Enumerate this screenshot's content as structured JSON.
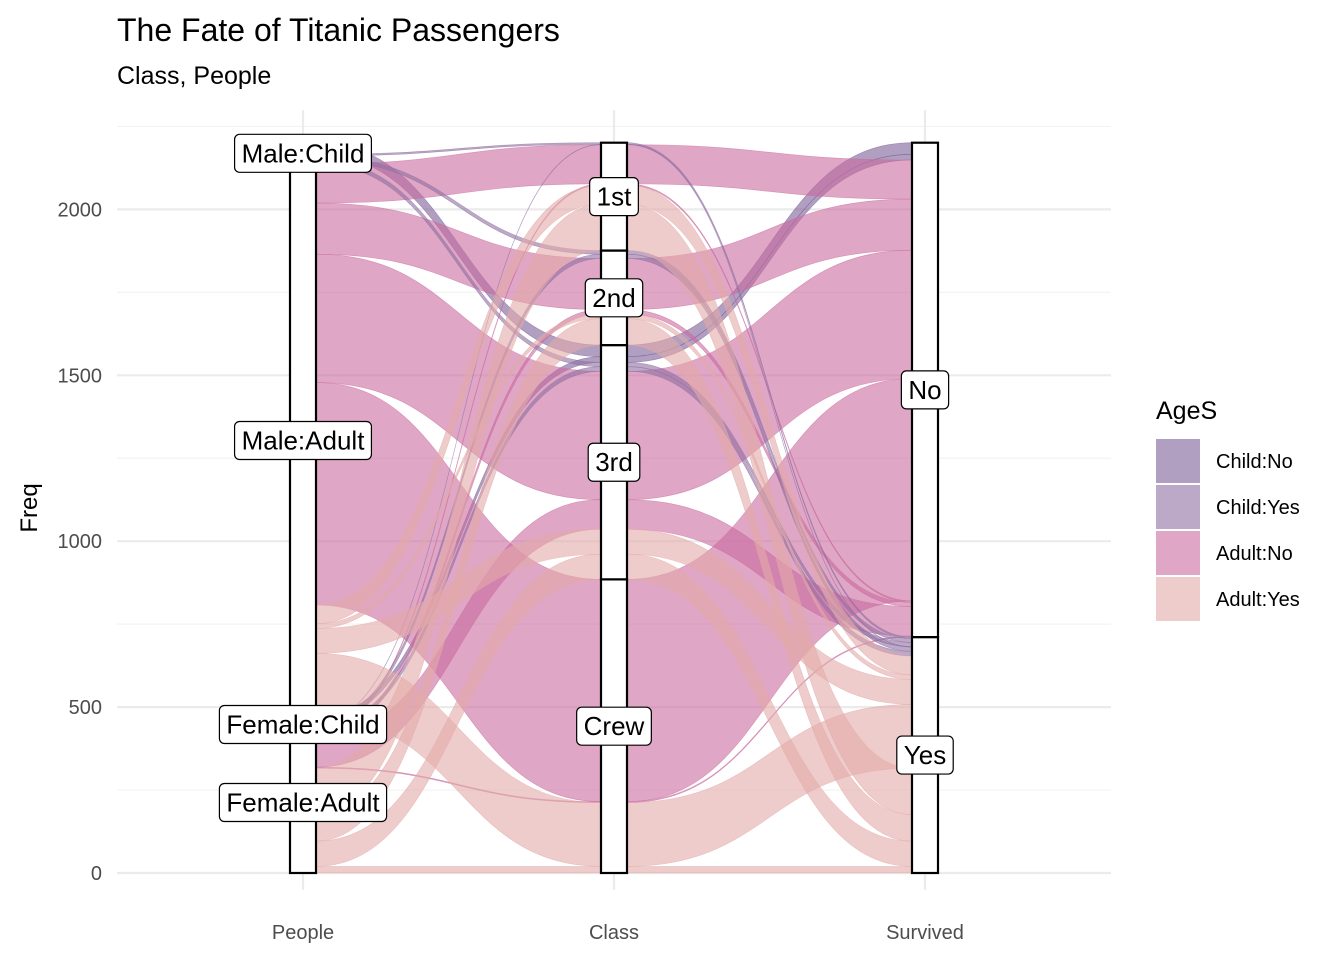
{
  "chart_data": {
    "type": "alluvial",
    "title": "The Fate of Titanic Passengers",
    "subtitle": "Class, People",
    "ylabel": "Freq",
    "ylim": [
      0,
      2201
    ],
    "yticks": [
      0,
      500,
      1000,
      1500,
      2000
    ],
    "axes": [
      "People",
      "Class",
      "Survived"
    ],
    "legend": {
      "title": "AgeS",
      "position": "right",
      "items": [
        {
          "label": "Child:No",
          "color": "#7b5f98"
        },
        {
          "label": "Child:Yes",
          "color": "#8f6fa2"
        },
        {
          "label": "Adult:No",
          "color": "#c96b9e"
        },
        {
          "label": "Adult:Yes",
          "color": "#e3aaa8"
        }
      ]
    },
    "strata": {
      "People": [
        "Female:Adult",
        "Female:Child",
        "Male:Adult",
        "Male:Child"
      ],
      "Class": [
        "Crew",
        "3rd",
        "2nd",
        "1st"
      ],
      "Survived": [
        "Yes",
        "No"
      ]
    },
    "flows": [
      {
        "sex": "Male",
        "age": "Child",
        "class": "1st",
        "survived": "No",
        "fill": "Child:No",
        "freq": 0
      },
      {
        "sex": "Male",
        "age": "Child",
        "class": "2nd",
        "survived": "No",
        "fill": "Child:No",
        "freq": 0
      },
      {
        "sex": "Male",
        "age": "Child",
        "class": "3rd",
        "survived": "No",
        "fill": "Child:No",
        "freq": 35
      },
      {
        "sex": "Male",
        "age": "Child",
        "class": "Crew",
        "survived": "No",
        "fill": "Child:No",
        "freq": 0
      },
      {
        "sex": "Female",
        "age": "Child",
        "class": "1st",
        "survived": "No",
        "fill": "Child:No",
        "freq": 0
      },
      {
        "sex": "Female",
        "age": "Child",
        "class": "2nd",
        "survived": "No",
        "fill": "Child:No",
        "freq": 0
      },
      {
        "sex": "Female",
        "age": "Child",
        "class": "3rd",
        "survived": "No",
        "fill": "Child:No",
        "freq": 17
      },
      {
        "sex": "Female",
        "age": "Child",
        "class": "Crew",
        "survived": "No",
        "fill": "Child:No",
        "freq": 0
      },
      {
        "sex": "Male",
        "age": "Adult",
        "class": "1st",
        "survived": "No",
        "fill": "Adult:No",
        "freq": 118
      },
      {
        "sex": "Male",
        "age": "Adult",
        "class": "2nd",
        "survived": "No",
        "fill": "Adult:No",
        "freq": 154
      },
      {
        "sex": "Male",
        "age": "Adult",
        "class": "3rd",
        "survived": "No",
        "fill": "Adult:No",
        "freq": 387
      },
      {
        "sex": "Male",
        "age": "Adult",
        "class": "Crew",
        "survived": "No",
        "fill": "Adult:No",
        "freq": 670
      },
      {
        "sex": "Female",
        "age": "Adult",
        "class": "1st",
        "survived": "No",
        "fill": "Adult:No",
        "freq": 4
      },
      {
        "sex": "Female",
        "age": "Adult",
        "class": "2nd",
        "survived": "No",
        "fill": "Adult:No",
        "freq": 13
      },
      {
        "sex": "Female",
        "age": "Adult",
        "class": "3rd",
        "survived": "No",
        "fill": "Adult:No",
        "freq": 89
      },
      {
        "sex": "Female",
        "age": "Adult",
        "class": "Crew",
        "survived": "No",
        "fill": "Adult:No",
        "freq": 3
      },
      {
        "sex": "Male",
        "age": "Child",
        "class": "1st",
        "survived": "Yes",
        "fill": "Child:Yes",
        "freq": 5
      },
      {
        "sex": "Male",
        "age": "Child",
        "class": "2nd",
        "survived": "Yes",
        "fill": "Child:Yes",
        "freq": 11
      },
      {
        "sex": "Male",
        "age": "Child",
        "class": "3rd",
        "survived": "Yes",
        "fill": "Child:Yes",
        "freq": 13
      },
      {
        "sex": "Male",
        "age": "Child",
        "class": "Crew",
        "survived": "Yes",
        "fill": "Child:Yes",
        "freq": 0
      },
      {
        "sex": "Female",
        "age": "Child",
        "class": "1st",
        "survived": "Yes",
        "fill": "Child:Yes",
        "freq": 1
      },
      {
        "sex": "Female",
        "age": "Child",
        "class": "2nd",
        "survived": "Yes",
        "fill": "Child:Yes",
        "freq": 13
      },
      {
        "sex": "Female",
        "age": "Child",
        "class": "3rd",
        "survived": "Yes",
        "fill": "Child:Yes",
        "freq": 14
      },
      {
        "sex": "Female",
        "age": "Child",
        "class": "Crew",
        "survived": "Yes",
        "fill": "Child:Yes",
        "freq": 0
      },
      {
        "sex": "Male",
        "age": "Adult",
        "class": "1st",
        "survived": "Yes",
        "fill": "Adult:Yes",
        "freq": 57
      },
      {
        "sex": "Male",
        "age": "Adult",
        "class": "2nd",
        "survived": "Yes",
        "fill": "Adult:Yes",
        "freq": 14
      },
      {
        "sex": "Male",
        "age": "Adult",
        "class": "3rd",
        "survived": "Yes",
        "fill": "Adult:Yes",
        "freq": 75
      },
      {
        "sex": "Male",
        "age": "Adult",
        "class": "Crew",
        "survived": "Yes",
        "fill": "Adult:Yes",
        "freq": 192
      },
      {
        "sex": "Female",
        "age": "Adult",
        "class": "1st",
        "survived": "Yes",
        "fill": "Adult:Yes",
        "freq": 140
      },
      {
        "sex": "Female",
        "age": "Adult",
        "class": "2nd",
        "survived": "Yes",
        "fill": "Adult:Yes",
        "freq": 80
      },
      {
        "sex": "Female",
        "age": "Adult",
        "class": "3rd",
        "survived": "Yes",
        "fill": "Adult:Yes",
        "freq": 76
      },
      {
        "sex": "Female",
        "age": "Adult",
        "class": "Crew",
        "survived": "Yes",
        "fill": "Adult:Yes",
        "freq": 20
      }
    ]
  }
}
